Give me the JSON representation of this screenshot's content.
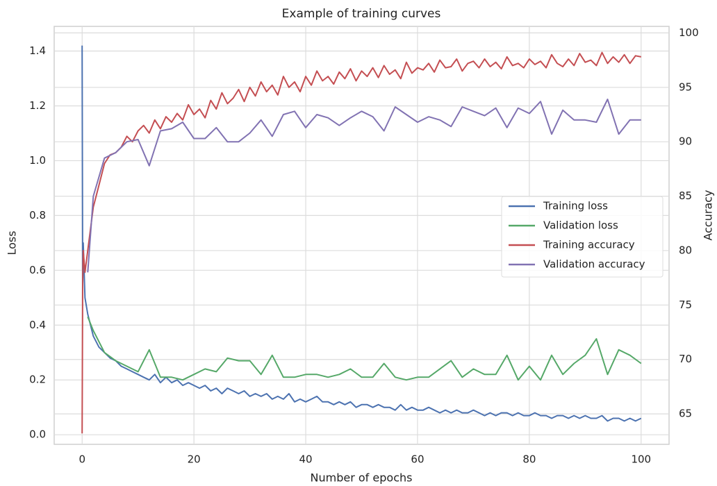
{
  "chart_data": {
    "type": "line",
    "title": "Example of training curves",
    "x_label": "Number of epochs",
    "y_label": "Loss",
    "y2_label": "Accuracy",
    "xlim": [
      -5,
      105
    ],
    "xticks": [
      0,
      20,
      40,
      60,
      80,
      100
    ],
    "ylim": [
      -0.035,
      1.49
    ],
    "yticks": [
      {
        "value": 0,
        "label": "0.0"
      },
      0.2,
      0.4,
      0.6,
      0.8,
      {
        "value": 1,
        "label": "1.0"
      },
      1.2,
      1.4
    ],
    "y2lim": [
      62.2,
      100.6
    ],
    "y2ticks": [
      65,
      70,
      75,
      80,
      85,
      90,
      95,
      100
    ],
    "grid": true,
    "legend": "right",
    "series": [
      {
        "name": "Training loss",
        "color": "#4c72b0",
        "x": [
          0,
          0.1,
          0.2,
          0.5,
          1,
          2,
          3,
          4,
          5,
          6,
          7,
          8,
          9,
          10,
          11,
          12,
          13,
          14,
          15,
          16,
          17,
          18,
          19,
          20,
          21,
          22,
          23,
          24,
          25,
          26,
          27,
          28,
          29,
          30,
          31,
          32,
          33,
          34,
          35,
          36,
          37,
          38,
          39,
          40,
          41,
          42,
          43,
          44,
          45,
          46,
          47,
          48,
          49,
          50,
          51,
          52,
          53,
          54,
          55,
          56,
          57,
          58,
          59,
          60,
          61,
          62,
          63,
          64,
          65,
          66,
          67,
          68,
          69,
          70,
          71,
          72,
          73,
          74,
          75,
          76,
          77,
          78,
          79,
          80,
          81,
          82,
          83,
          84,
          85,
          86,
          87,
          88,
          89,
          90,
          91,
          92,
          93,
          94,
          95,
          96,
          97,
          98,
          99,
          100
        ],
        "values": [
          1.42,
          0.55,
          0.7,
          0.5,
          0.44,
          0.36,
          0.32,
          0.3,
          0.28,
          0.27,
          0.25,
          0.24,
          0.23,
          0.22,
          0.21,
          0.2,
          0.22,
          0.19,
          0.21,
          0.19,
          0.2,
          0.18,
          0.19,
          0.18,
          0.17,
          0.18,
          0.16,
          0.17,
          0.15,
          0.17,
          0.16,
          0.15,
          0.16,
          0.14,
          0.15,
          0.14,
          0.15,
          0.13,
          0.14,
          0.13,
          0.15,
          0.12,
          0.13,
          0.12,
          0.13,
          0.14,
          0.12,
          0.12,
          0.11,
          0.12,
          0.11,
          0.12,
          0.1,
          0.11,
          0.11,
          0.1,
          0.11,
          0.1,
          0.1,
          0.09,
          0.11,
          0.09,
          0.1,
          0.09,
          0.09,
          0.1,
          0.09,
          0.08,
          0.09,
          0.08,
          0.09,
          0.08,
          0.08,
          0.09,
          0.08,
          0.07,
          0.08,
          0.07,
          0.08,
          0.08,
          0.07,
          0.08,
          0.07,
          0.07,
          0.08,
          0.07,
          0.07,
          0.06,
          0.07,
          0.07,
          0.06,
          0.07,
          0.06,
          0.07,
          0.06,
          0.06,
          0.07,
          0.05,
          0.06,
          0.06,
          0.05,
          0.06,
          0.05,
          0.06
        ]
      },
      {
        "name": "Validation loss",
        "color": "#55a868",
        "x": [
          1,
          2,
          4,
          6,
          8,
          10,
          12,
          14,
          16,
          18,
          20,
          22,
          24,
          26,
          28,
          30,
          32,
          34,
          36,
          38,
          40,
          42,
          44,
          46,
          48,
          50,
          52,
          54,
          56,
          58,
          60,
          62,
          64,
          66,
          68,
          70,
          72,
          74,
          76,
          78,
          80,
          82,
          84,
          86,
          88,
          90,
          92,
          94,
          96,
          98,
          100
        ],
        "values": [
          0.43,
          0.38,
          0.3,
          0.27,
          0.25,
          0.23,
          0.31,
          0.21,
          0.21,
          0.2,
          0.22,
          0.24,
          0.23,
          0.28,
          0.27,
          0.27,
          0.22,
          0.29,
          0.21,
          0.21,
          0.22,
          0.22,
          0.21,
          0.22,
          0.24,
          0.21,
          0.21,
          0.26,
          0.21,
          0.2,
          0.21,
          0.21,
          0.24,
          0.27,
          0.21,
          0.24,
          0.22,
          0.22,
          0.29,
          0.2,
          0.25,
          0.2,
          0.29,
          0.22,
          0.26,
          0.29,
          0.35,
          0.22,
          0.31,
          0.29,
          0.26
        ]
      },
      {
        "name": "Training accuracy",
        "color": "#c44e52",
        "axis": "y2",
        "x": [
          0,
          0.1,
          0.2,
          0.5,
          1,
          2,
          3,
          4,
          5,
          6,
          7,
          8,
          9,
          10,
          11,
          12,
          13,
          14,
          15,
          16,
          17,
          18,
          19,
          20,
          21,
          22,
          23,
          24,
          25,
          26,
          27,
          28,
          29,
          30,
          31,
          32,
          33,
          34,
          35,
          36,
          37,
          38,
          39,
          40,
          41,
          42,
          43,
          44,
          45,
          46,
          47,
          48,
          49,
          50,
          51,
          52,
          53,
          54,
          55,
          56,
          57,
          58,
          59,
          60,
          61,
          62,
          63,
          64,
          65,
          66,
          67,
          68,
          69,
          70,
          71,
          72,
          73,
          74,
          75,
          76,
          77,
          78,
          79,
          80,
          81,
          82,
          83,
          84,
          85,
          86,
          87,
          88,
          89,
          90,
          91,
          92,
          93,
          94,
          95,
          96,
          97,
          98,
          99,
          100
        ],
        "values": [
          63.2,
          77,
          80,
          78,
          80,
          84,
          86,
          88,
          88.8,
          89,
          89.5,
          90.5,
          90,
          91,
          91.5,
          90.8,
          92,
          91.2,
          92.3,
          91.8,
          92.6,
          92,
          93.4,
          92.5,
          93,
          92.2,
          93.8,
          93,
          94.5,
          93.5,
          94,
          94.8,
          93.7,
          95,
          94.2,
          95.5,
          94.6,
          95.2,
          94.3,
          96,
          95,
          95.5,
          94.6,
          96,
          95.2,
          96.5,
          95.6,
          96,
          95.3,
          96.4,
          95.8,
          96.7,
          95.6,
          96.5,
          96,
          96.8,
          95.9,
          97,
          96.2,
          96.6,
          95.8,
          97.3,
          96.3,
          96.8,
          96.6,
          97.2,
          96.4,
          97.5,
          96.8,
          96.9,
          97.6,
          96.5,
          97.2,
          97.4,
          96.8,
          97.6,
          96.9,
          97.3,
          96.7,
          97.8,
          97,
          97.2,
          96.8,
          97.6,
          97.1,
          97.4,
          96.8,
          98,
          97.2,
          96.9,
          97.6,
          97,
          98.1,
          97.3,
          97.5,
          97,
          98.2,
          97.2,
          97.8,
          97.3,
          98,
          97.2,
          97.9,
          97.8
        ]
      },
      {
        "name": "Validation accuracy",
        "color": "#8172b2",
        "axis": "y2",
        "x": [
          1,
          2,
          4,
          6,
          8,
          10,
          12,
          14,
          16,
          18,
          20,
          22,
          24,
          26,
          28,
          30,
          32,
          34,
          36,
          38,
          40,
          42,
          44,
          46,
          48,
          50,
          52,
          54,
          56,
          58,
          60,
          62,
          64,
          66,
          68,
          70,
          72,
          74,
          76,
          78,
          80,
          82,
          84,
          86,
          88,
          90,
          92,
          94,
          96,
          98,
          100
        ],
        "values": [
          78,
          85,
          88.5,
          89,
          90,
          90.2,
          87.8,
          91,
          91.2,
          91.8,
          90.3,
          90.3,
          91.3,
          90,
          90,
          90.8,
          92,
          90.5,
          92.5,
          92.8,
          91.3,
          92.5,
          92.2,
          91.5,
          92.2,
          92.8,
          92.3,
          91,
          93.2,
          92.5,
          91.8,
          92.3,
          92,
          91.4,
          93.2,
          92.8,
          92.4,
          93.1,
          91.3,
          93.1,
          92.6,
          93.7,
          90.7,
          92.9,
          92,
          92,
          91.8,
          93.9,
          90.7,
          92,
          92
        ]
      }
    ]
  }
}
